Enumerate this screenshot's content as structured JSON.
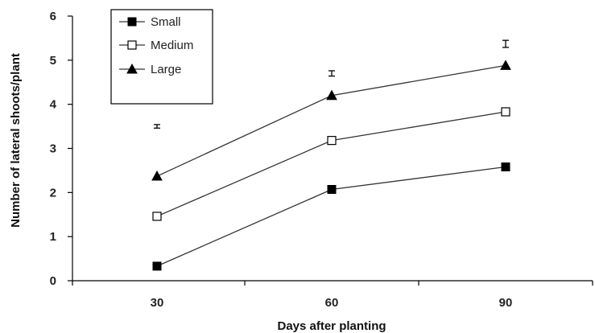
{
  "chart_data": {
    "type": "line",
    "xlabel": "Days after planting",
    "ylabel": "Number of lateral shoots/plant",
    "categories": [
      "30",
      "60",
      "90"
    ],
    "y_ticks": [
      "0",
      "1",
      "2",
      "3",
      "4",
      "5",
      "6"
    ],
    "ylim": [
      0,
      6
    ],
    "grid": false,
    "legend_position": "top-left",
    "series": [
      {
        "name": "Small",
        "marker": "filled-square",
        "values": [
          0.33,
          2.07,
          2.58
        ]
      },
      {
        "name": "Medium",
        "marker": "open-square",
        "values": [
          1.46,
          3.18,
          3.83
        ]
      },
      {
        "name": "Large",
        "marker": "filled-triangle",
        "values": [
          2.37,
          4.2,
          4.88
        ]
      }
    ],
    "error_bars": [
      {
        "x": "30",
        "value": 3.5,
        "half_width": 0.04
      },
      {
        "x": "60",
        "value": 4.7,
        "half_width": 0.06
      },
      {
        "x": "90",
        "value": 5.37,
        "half_width": 0.08
      }
    ]
  }
}
